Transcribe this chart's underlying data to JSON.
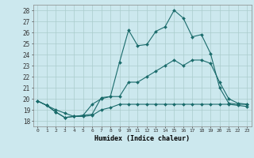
{
  "title": "",
  "xlabel": "Humidex (Indice chaleur)",
  "ylabel": "",
  "background_color": "#cce8ee",
  "grid_color": "#aacccc",
  "line_color": "#1a6b6b",
  "xlim": [
    -0.5,
    23.5
  ],
  "ylim": [
    17.5,
    28.5
  ],
  "yticks": [
    18,
    19,
    20,
    21,
    22,
    23,
    24,
    25,
    26,
    27,
    28
  ],
  "xticks": [
    0,
    1,
    2,
    3,
    4,
    5,
    6,
    7,
    8,
    9,
    10,
    11,
    12,
    13,
    14,
    15,
    16,
    17,
    18,
    19,
    20,
    21,
    22,
    23
  ],
  "series": [
    [
      19.8,
      19.4,
      18.8,
      18.3,
      18.4,
      18.5,
      18.6,
      20.1,
      20.2,
      23.3,
      26.2,
      24.8,
      24.9,
      26.1,
      26.5,
      28.0,
      27.3,
      25.6,
      25.8,
      24.1,
      21.0,
      19.6,
      19.5,
      19.5
    ],
    [
      19.8,
      19.4,
      19.0,
      18.7,
      18.4,
      18.5,
      19.5,
      20.0,
      20.2,
      20.2,
      21.5,
      21.5,
      22.0,
      22.5,
      23.0,
      23.5,
      23.0,
      23.5,
      23.5,
      23.2,
      21.5,
      20.0,
      19.6,
      19.5
    ],
    [
      19.8,
      19.4,
      18.8,
      18.3,
      18.4,
      18.4,
      18.5,
      19.0,
      19.2,
      19.5,
      19.5,
      19.5,
      19.5,
      19.5,
      19.5,
      19.5,
      19.5,
      19.5,
      19.5,
      19.5,
      19.5,
      19.5,
      19.4,
      19.3
    ]
  ]
}
